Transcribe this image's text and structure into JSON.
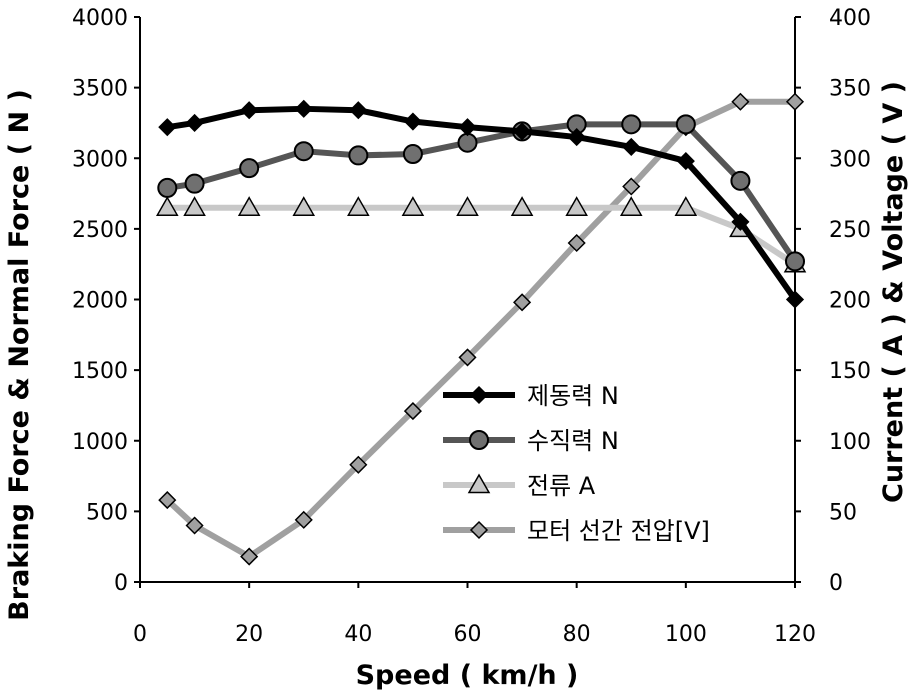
{
  "chart_data": {
    "type": "line",
    "xlabel": "Speed ( km/h )",
    "ylabel_left": "Braking Force &  Normal  Force ( N )",
    "ylabel_right": "Current ( A ) & Voltage ( V )",
    "xlim": [
      0,
      120
    ],
    "ylim_left": [
      0,
      4000
    ],
    "ylim_right": [
      0,
      400
    ],
    "x_ticks": [
      0,
      20,
      40,
      60,
      80,
      100,
      120
    ],
    "y_ticks_left": [
      0,
      500,
      1000,
      1500,
      2000,
      2500,
      3000,
      3500,
      4000
    ],
    "y_ticks_right": [
      0,
      50,
      100,
      150,
      200,
      250,
      300,
      350,
      400
    ],
    "grid": false,
    "legend_position": "center",
    "series": [
      {
        "name": "제동력 N",
        "axis": "left",
        "marker": "diamond",
        "color": "#000000",
        "marker_fill": "#000000",
        "x": [
          5,
          10,
          20,
          30,
          40,
          50,
          60,
          70,
          80,
          90,
          100,
          110,
          120
        ],
        "values": [
          3220,
          3250,
          3340,
          3350,
          3340,
          3260,
          3220,
          3190,
          3150,
          3080,
          2980,
          2550,
          2000
        ]
      },
      {
        "name": "수직력 N",
        "axis": "left",
        "marker": "circle",
        "color": "#555555",
        "marker_fill": "#707070",
        "x": [
          5,
          10,
          20,
          30,
          40,
          50,
          60,
          70,
          80,
          90,
          100,
          110,
          120
        ],
        "values": [
          2790,
          2820,
          2930,
          3050,
          3020,
          3030,
          3110,
          3190,
          3240,
          3240,
          3240,
          2840,
          2270
        ]
      },
      {
        "name": "전류 A",
        "axis": "right",
        "marker": "triangle",
        "color": "#c8c8c8",
        "marker_fill": "#c8c8c8",
        "x": [
          5,
          10,
          20,
          30,
          40,
          50,
          60,
          70,
          80,
          90,
          100,
          110,
          120
        ],
        "values": [
          265,
          265,
          265,
          265,
          265,
          265,
          265,
          265,
          265,
          265,
          265,
          250,
          225
        ]
      },
      {
        "name": "모터 선간 전압[V]",
        "axis": "right",
        "marker": "diamond",
        "color": "#a0a0a0",
        "marker_fill": "#a0a0a0",
        "x": [
          5,
          10,
          20,
          30,
          40,
          50,
          60,
          70,
          80,
          90,
          100,
          110,
          120
        ],
        "values": [
          58,
          40,
          18,
          44,
          83,
          121,
          159,
          198,
          240,
          280,
          322,
          340,
          340
        ]
      }
    ]
  }
}
